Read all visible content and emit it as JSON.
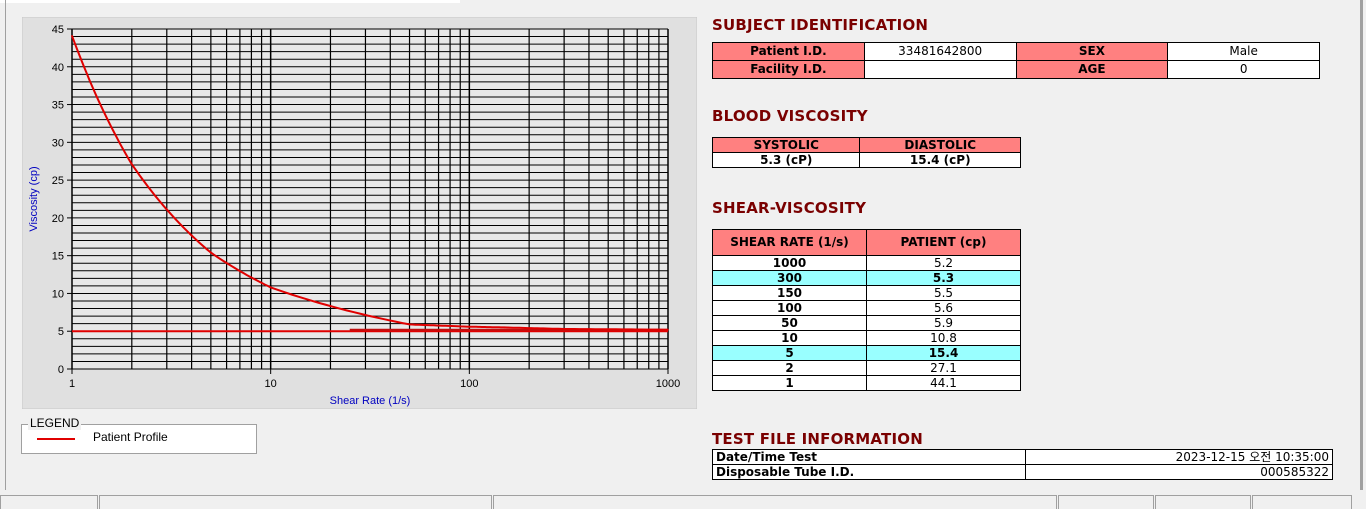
{
  "chart_data": {
    "type": "line",
    "xlabel": "Shear Rate (1/s)",
    "ylabel": "Viscosity (cp)",
    "xscale": "log",
    "xlim": [
      1,
      1000
    ],
    "ylim": [
      0,
      45
    ],
    "xticks": [
      "1",
      "10",
      "100",
      "1000"
    ],
    "yticks": [
      "0",
      "5",
      "10",
      "15",
      "20",
      "25",
      "30",
      "35",
      "40",
      "45"
    ],
    "grid": true,
    "legend_title": "LEGEND",
    "legend_position": "bottom-left",
    "series": [
      {
        "name": "Patient Profile",
        "color": "#e00000",
        "x": [
          1,
          2,
          5,
          10,
          50,
          100,
          150,
          300,
          1000
        ],
        "y": [
          44.1,
          27.1,
          15.4,
          10.8,
          5.9,
          5.6,
          5.5,
          5.3,
          5.2
        ]
      }
    ],
    "reference_lines": [
      {
        "y": 5.0,
        "x": [
          1,
          1000
        ],
        "color": "#e00000"
      },
      {
        "y": 5.2,
        "x": [
          25,
          1000
        ],
        "color": "#c01010"
      }
    ]
  },
  "subject": {
    "title": "SUBJECT IDENTIFICATION",
    "patient_id_label": "Patient I.D.",
    "patient_id": "33481642800",
    "sex_label": "SEX",
    "sex": "Male",
    "facility_id_label": "Facility I.D.",
    "facility_id": "",
    "age_label": "AGE",
    "age": "0"
  },
  "blood_viscosity": {
    "title": "BLOOD VISCOSITY",
    "systolic_label": "SYSTOLIC",
    "diastolic_label": "DIASTOLIC",
    "systolic": "5.3 (cP)",
    "diastolic": "15.4 (cP)"
  },
  "shear_viscosity": {
    "title": "SHEAR-VISCOSITY",
    "col1": "SHEAR RATE (1/s)",
    "col2": "PATIENT (cp)",
    "highlight_color": "#99ffff",
    "rows": [
      {
        "rate": "1000",
        "value": "5.2",
        "highlight": false
      },
      {
        "rate": "300",
        "value": "5.3",
        "highlight": true
      },
      {
        "rate": "150",
        "value": "5.5",
        "highlight": false
      },
      {
        "rate": "100",
        "value": "5.6",
        "highlight": false
      },
      {
        "rate": "50",
        "value": "5.9",
        "highlight": false
      },
      {
        "rate": "10",
        "value": "10.8",
        "highlight": false
      },
      {
        "rate": "5",
        "value": "15.4",
        "highlight": true
      },
      {
        "rate": "2",
        "value": "27.1",
        "highlight": false
      },
      {
        "rate": "1",
        "value": "44.1",
        "highlight": false
      }
    ]
  },
  "test_file": {
    "title": "TEST FILE INFORMATION",
    "datetime_label": "Date/Time Test",
    "datetime": "2023-12-15  오전 10:35:00",
    "tube_label": "Disposable Tube I.D.",
    "tube": "000585322"
  },
  "colors": {
    "header_bg": "#ff8080",
    "section_title": "#7a0000",
    "axis_label": "#0000c0"
  }
}
